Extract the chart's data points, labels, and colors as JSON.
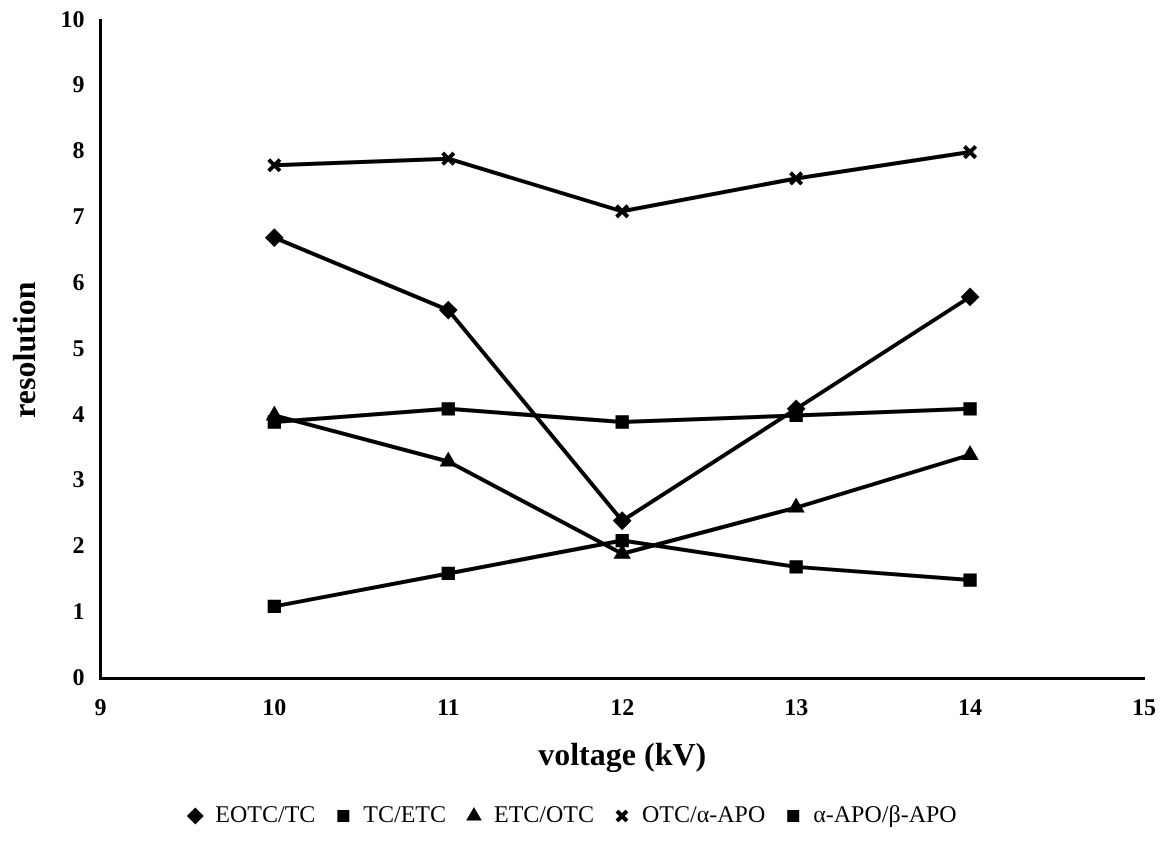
{
  "chart_data": {
    "type": "line",
    "xlabel": "voltage (kV)",
    "ylabel": "resolution",
    "x": [
      10,
      11,
      12,
      13,
      14
    ],
    "series": [
      {
        "name": "EOTC/TC",
        "color": "#000000",
        "marker": "diamond",
        "values": [
          6.7,
          5.6,
          2.4,
          4.1,
          5.8
        ]
      },
      {
        "name": "TC/ETC",
        "color": "#000000",
        "marker": "square",
        "values": [
          1.1,
          1.6,
          2.1,
          1.7,
          1.5
        ]
      },
      {
        "name": "ETC/OTC",
        "color": "#000000",
        "marker": "triangle",
        "values": [
          4.0,
          3.3,
          1.9,
          2.6,
          3.4
        ]
      },
      {
        "name": "OTC/α-APO",
        "color": "#000000",
        "marker": "cross",
        "values": [
          7.8,
          7.9,
          7.1,
          7.6,
          8.0
        ]
      },
      {
        "name": "α-APO/β-APO",
        "color": "#000000",
        "marker": "square",
        "values": [
          3.9,
          4.1,
          3.9,
          4.0,
          4.1
        ]
      }
    ],
    "xlim": [
      9,
      15
    ],
    "xticks": [
      9,
      10,
      11,
      12,
      13,
      14,
      15
    ],
    "ylim": [
      0,
      10
    ],
    "yticks": [
      0,
      1,
      2,
      3,
      4,
      5,
      6,
      7,
      8,
      9,
      10
    ],
    "grid": false,
    "legend": "bottom",
    "line_style": "solid"
  }
}
